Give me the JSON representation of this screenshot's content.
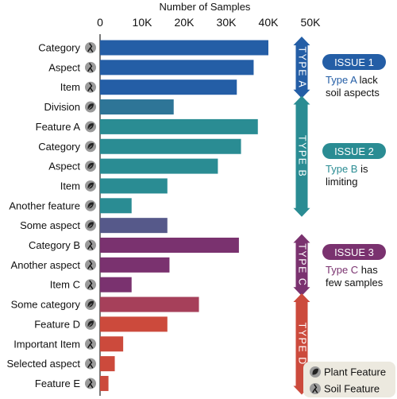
{
  "chart_data": {
    "type": "bar",
    "orientation": "horizontal",
    "xlabel": "Number of Samples",
    "xlim": [
      0,
      50000
    ],
    "x_ticks": [
      "0",
      "10K",
      "20K",
      "30K",
      "40K",
      "50K"
    ],
    "x_tick_values": [
      0,
      10000,
      20000,
      30000,
      40000,
      50000
    ],
    "categories": [
      "Category",
      "Aspect",
      "Item",
      "Division",
      "Feature A",
      "Category",
      "Aspect",
      "Item",
      "Another feature",
      "Some aspect",
      "Category B",
      "Another aspect",
      "Item C",
      "Some category",
      "Feature D",
      "Important Item",
      "Selected aspect",
      "Feature E"
    ],
    "values": [
      40000,
      36500,
      32500,
      17500,
      37500,
      33500,
      28000,
      16000,
      7500,
      16000,
      33000,
      16500,
      7500,
      23500,
      16000,
      5500,
      3500,
      2000
    ],
    "feature_kind": [
      "soil",
      "soil",
      "soil",
      "plant",
      "plant",
      "plant",
      "plant",
      "plant",
      "plant",
      "plant",
      "soil",
      "soil",
      "soil",
      "plant",
      "plant",
      "soil",
      "soil",
      "soil"
    ],
    "bar_colors": [
      "#245ea6",
      "#245ea6",
      "#245ea6",
      "#2e7597",
      "#2a8c93",
      "#2a8c93",
      "#2a8c93",
      "#2a8c93",
      "#2a8c93",
      "#56598a",
      "#7a326f",
      "#7a326f",
      "#7a326f",
      "#a6405a",
      "#cc4a3c",
      "#cc4a3c",
      "#cc4a3c",
      "#cc4a3c"
    ],
    "groups": [
      {
        "label": "TYPE A",
        "color": "#245ea6",
        "first": 0,
        "last": 2
      },
      {
        "label": "TYPE B",
        "color": "#2a8c93",
        "first": 3,
        "last": 8
      },
      {
        "label": "TYPE C",
        "color": "#7a326f",
        "first": 10,
        "last": 12
      },
      {
        "label": "TYPE D",
        "color": "#cc4a3c",
        "first": 13,
        "last": 17
      }
    ],
    "issues": [
      {
        "title": "ISSUE 1",
        "color": "#245ea6",
        "type_word": "Type A",
        "rest_line1": " lack",
        "line2": "soil aspects"
      },
      {
        "title": "ISSUE 2",
        "color": "#2a8c93",
        "type_word": "Type B",
        "rest_line1": " is",
        "line2": "limiting"
      },
      {
        "title": "ISSUE 3",
        "color": "#7a326f",
        "type_word": "Type C",
        "rest_line1": " has",
        "line2": "few samples"
      }
    ],
    "legend": {
      "position": "bottom-right",
      "items": [
        {
          "label": "Plant Feature",
          "icon": "plant-icon"
        },
        {
          "label": "Soil Feature",
          "icon": "soil-icon"
        }
      ]
    },
    "grid": false
  }
}
